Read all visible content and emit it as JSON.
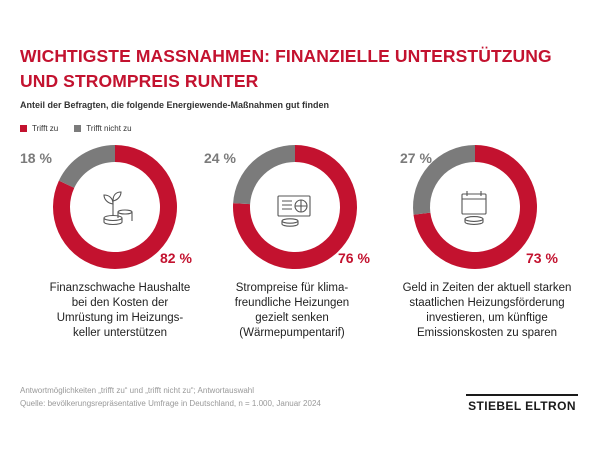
{
  "title": "Wichtigste Maßnahmen: finanzielle Unterstützung und Strompreis runter",
  "subtitle": "Anteil der Befragten, die folgende Energiewende-Maßnahmen gut finden",
  "legend": [
    {
      "label": "Trifft zu",
      "color": "#c3122f"
    },
    {
      "label": "Trifft nicht zu",
      "color": "#7b7b7b"
    }
  ],
  "colors": {
    "yes": "#c3122f",
    "no": "#7b7b7b"
  },
  "chart_data": [
    {
      "type": "pie",
      "categories": [
        "Trifft zu",
        "Trifft nicht zu"
      ],
      "values": [
        82,
        18
      ],
      "value_labels": [
        "82 %",
        "18 %"
      ],
      "label": "Finanzschwache Haushalte\nbei den Kosten der\nUmrüstung im Heizungs-\nkeller unterstützen",
      "icon": "plant-coins-icon"
    },
    {
      "type": "pie",
      "categories": [
        "Trifft zu",
        "Trifft nicht zu"
      ],
      "values": [
        76,
        24
      ],
      "value_labels": [
        "76 %",
        "24 %"
      ],
      "label": "Strompreise für klima-\nfreundliche Heizungen\ngezielt senken\n(Wärmepumpentarif)",
      "icon": "heat-pump-coins-icon"
    },
    {
      "type": "pie",
      "categories": [
        "Trifft zu",
        "Trifft nicht zu"
      ],
      "values": [
        73,
        27
      ],
      "value_labels": [
        "73 %",
        "27 %"
      ],
      "label": "Geld in Zeiten der aktuell starken\nstaatlichen Heizungsförderung\ninvestieren, um künftige\nEmissionskosten zu sparen",
      "icon": "calendar-coins-icon"
    }
  ],
  "footer": {
    "line1": "Antwortmöglichkeiten „trifft zu“ und „trifft nicht zu“; Antwortauswahl",
    "line2": "Quelle: bevölkerungsrepräsentative Umfrage in Deutschland, n = 1.000, Januar 2024"
  },
  "logo": "STIEBEL ELTRON"
}
